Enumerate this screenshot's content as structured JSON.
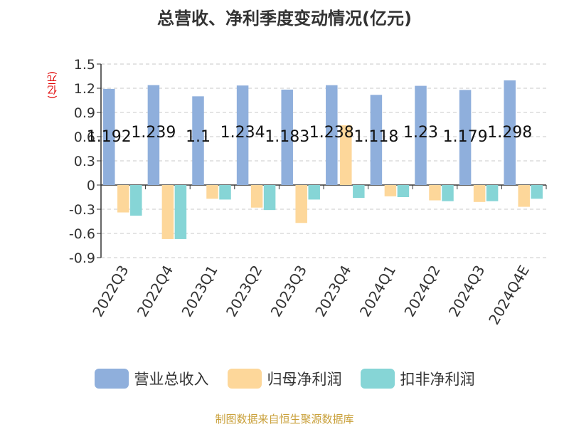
{
  "chart_data": {
    "type": "bar",
    "title": "总营收、净利季度变动情况(亿元)",
    "ylabel": "(亿元)",
    "ylim": [
      -0.9,
      1.5
    ],
    "yticks": [
      1.5,
      1.2,
      0.9,
      0.6,
      0.3,
      0,
      -0.3,
      -0.6,
      -0.9
    ],
    "ytick_labels": [
      "1.5",
      "1.2",
      "0.9",
      "0.6",
      "0.3",
      "0",
      "-0.3",
      "-0.6",
      "-0.9"
    ],
    "categories": [
      "2022Q3",
      "2022Q4",
      "2023Q1",
      "2023Q2",
      "2023Q3",
      "2023Q4",
      "2024Q1",
      "2024Q2",
      "2024Q3",
      "2024Q4E"
    ],
    "series": [
      {
        "name": "营业总收入",
        "color": "#8fafdc",
        "values": [
          1.192,
          1.239,
          1.1,
          1.234,
          1.183,
          1.238,
          1.118,
          1.23,
          1.179,
          1.298
        ],
        "labels": [
          "1.192",
          "1.239",
          "1.1",
          "1.234",
          "1.183",
          "1.238",
          "1.118",
          "1.23",
          "1.179",
          "1.298"
        ]
      },
      {
        "name": "归母净利润",
        "color": "#fdd79a",
        "values": [
          -0.34,
          -0.67,
          -0.17,
          -0.28,
          -0.47,
          0.74,
          -0.14,
          -0.19,
          -0.21,
          -0.27
        ]
      },
      {
        "name": "扣非净利润",
        "color": "#86d5d6",
        "values": [
          -0.38,
          -0.67,
          -0.18,
          -0.31,
          -0.18,
          -0.16,
          -0.15,
          -0.2,
          -0.2,
          -0.17
        ]
      }
    ],
    "grid": true,
    "legend_position": "bottom"
  },
  "source_text": "制图数据来自恒生聚源数据库"
}
